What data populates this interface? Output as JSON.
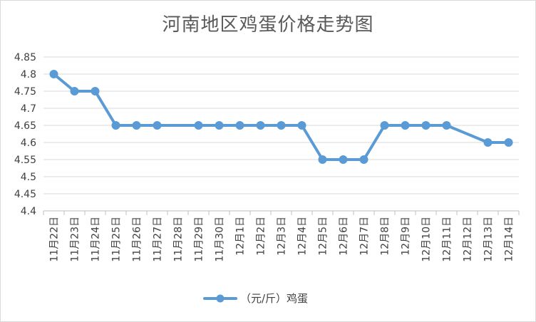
{
  "chart_data": {
    "type": "line",
    "title": "河南地区鸡蛋价格走势图",
    "categories": [
      "11月22日",
      "11月23日",
      "11月24日",
      "11月25日",
      "11月26日",
      "11月27日",
      "11月28日",
      "11月29日",
      "11月30日",
      "12月1日",
      "12月2日",
      "12月3日",
      "12月4日",
      "12月5日",
      "12月6日",
      "12月7日",
      "12月8日",
      "12月9日",
      "12月10日",
      "12月11日",
      "12月12日",
      "12月13日",
      "12月14日"
    ],
    "series": [
      {
        "name": "（元/斤）鸡蛋",
        "color": "#5b9bd5",
        "values": [
          4.8,
          4.75,
          4.75,
          4.65,
          4.65,
          4.65,
          null,
          4.65,
          4.65,
          4.65,
          4.65,
          4.65,
          4.65,
          4.55,
          4.55,
          4.55,
          4.65,
          4.65,
          4.65,
          4.65,
          null,
          4.6,
          4.6
        ]
      }
    ],
    "ylim": [
      4.4,
      4.85
    ],
    "yticks": [
      "4.4",
      "4.45",
      "4.5",
      "4.55",
      "4.6",
      "4.65",
      "4.7",
      "4.75",
      "4.8",
      "4.85"
    ],
    "grid": true,
    "legend": "bottom",
    "xlabel": "",
    "ylabel": ""
  }
}
